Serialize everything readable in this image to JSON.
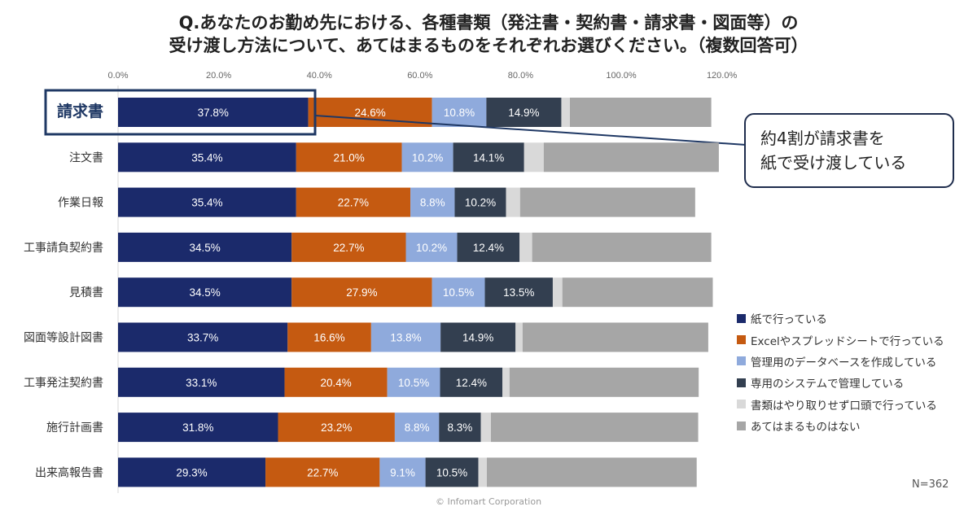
{
  "title": {
    "line1": "Q.あなたのお勤め先における、各種書類（発注書・契約書・請求書・図面等）の",
    "line2": "受け渡し方法について、あてはまるものをそれぞれお選びください。（複数回答可）"
  },
  "callout": {
    "line1": "約4割が請求書を",
    "line2": "紙で受け渡している"
  },
  "n_label": "N=362",
  "copyright": "© Infomart Corporation",
  "colors": {
    "series": [
      "#1b2a6b",
      "#c55a11",
      "#8faadc",
      "#333f50",
      "#d9d9d9",
      "#a6a6a6"
    ],
    "highlight": "#1f3864"
  },
  "chart_data": {
    "type": "bar",
    "orientation": "horizontal",
    "stacked": true,
    "title": "Q.あなたのお勤め先における、各種書類（発注書・契約書・請求書・図面等）の受け渡し方法について、あてはまるものをそれぞれお選びください。（複数回答可）",
    "xlabel": "",
    "ylabel": "",
    "xlim": [
      0,
      120
    ],
    "xticks": [
      "0.0%",
      "20.0%",
      "40.0%",
      "60.0%",
      "80.0%",
      "100.0%",
      "120.0%"
    ],
    "categories": [
      "請求書",
      "注文書",
      "作業日報",
      "工事請負契約書",
      "見積書",
      "図面等設計図書",
      "工事発注契約書",
      "施行計画書",
      "出来高報告書"
    ],
    "highlighted_category": "請求書",
    "series": [
      {
        "name": "紙で行っている",
        "values": [
          37.8,
          35.4,
          35.4,
          34.5,
          34.5,
          33.7,
          33.1,
          31.8,
          29.3
        ]
      },
      {
        "name": "Excelやスプレッドシートで行っている",
        "values": [
          24.6,
          21.0,
          22.7,
          22.7,
          27.9,
          16.6,
          20.4,
          23.2,
          22.7
        ]
      },
      {
        "name": "管理用のデータベースを作成している",
        "values": [
          10.8,
          10.2,
          8.8,
          10.2,
          10.5,
          13.8,
          10.5,
          8.8,
          9.1
        ]
      },
      {
        "name": "専用のシステムで管理している",
        "values": [
          14.9,
          14.1,
          10.2,
          12.4,
          13.5,
          14.9,
          12.4,
          8.3,
          10.5
        ]
      },
      {
        "name": "書類はやり取りせず口頭で行っている",
        "values": [
          1.7,
          3.9,
          2.8,
          2.5,
          1.9,
          1.4,
          1.4,
          2.0,
          1.7
        ]
      },
      {
        "name": "あてはまるものはない",
        "values": [
          28.1,
          34.8,
          34.8,
          35.6,
          29.9,
          36.9,
          37.6,
          41.2,
          41.7
        ]
      }
    ],
    "legend_position": "right",
    "grid": false
  }
}
